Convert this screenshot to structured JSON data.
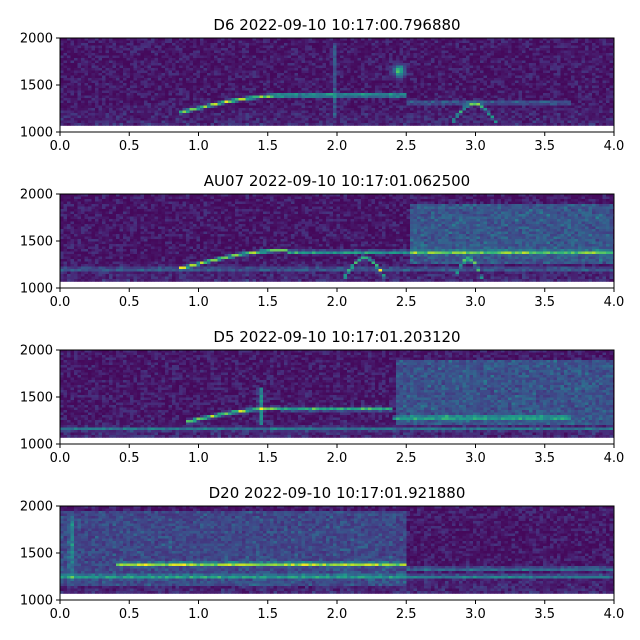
{
  "chart_data": [
    {
      "type": "heatmap",
      "title": "D6 2022-09-10 10:17:00.796880",
      "xlim": [
        0.0,
        4.0
      ],
      "ylim": [
        1000,
        2000
      ],
      "xticks": [
        "0.0",
        "0.5",
        "1.0",
        "1.5",
        "2.0",
        "2.5",
        "3.0",
        "3.5",
        "4.0"
      ],
      "yticks": [
        "1000",
        "1500",
        "2000"
      ],
      "data_ylim": [
        1090,
        2000
      ],
      "colormap": "viridis",
      "features": [
        {
          "kind": "arc",
          "t0": 0.85,
          "t1": 1.65,
          "f0": 1200,
          "f1": 1390,
          "intensity": 0.9
        },
        {
          "kind": "line",
          "t0": 1.65,
          "t1": 2.5,
          "f": 1390,
          "intensity": 0.7
        },
        {
          "kind": "line",
          "t0": 2.5,
          "t1": 3.7,
          "f": 1310,
          "intensity": 0.35
        },
        {
          "kind": "hump",
          "t0": 2.83,
          "t1": 3.15,
          "f": 1300,
          "intensity": 0.6
        },
        {
          "kind": "blob",
          "t": 2.45,
          "f": 1650,
          "intensity": 0.8
        },
        {
          "kind": "vline",
          "t": 1.98,
          "f0": 1150,
          "f1": 1950,
          "intensity": 0.25
        }
      ]
    },
    {
      "type": "heatmap",
      "title": "AU07 2022-09-10 10:17:01.062500",
      "xlim": [
        0.0,
        4.0
      ],
      "ylim": [
        1000,
        2000
      ],
      "xticks": [
        "0.0",
        "0.5",
        "1.0",
        "1.5",
        "2.0",
        "2.5",
        "3.0",
        "3.5",
        "4.0"
      ],
      "yticks": [
        "1000",
        "1500",
        "2000"
      ],
      "data_ylim": [
        1090,
        2000
      ],
      "colormap": "viridis",
      "features": [
        {
          "kind": "arc",
          "t0": 0.85,
          "t1": 1.65,
          "f0": 1200,
          "f1": 1400,
          "intensity": 0.9
        },
        {
          "kind": "line",
          "t0": 1.65,
          "t1": 4.0,
          "f": 1380,
          "intensity": 0.6
        },
        {
          "kind": "line",
          "t0": 0.0,
          "t1": 4.0,
          "f": 1200,
          "intensity": 0.3
        },
        {
          "kind": "hump",
          "t0": 2.05,
          "t1": 2.35,
          "f": 1320,
          "intensity": 0.8
        },
        {
          "kind": "hump",
          "t0": 2.85,
          "t1": 3.05,
          "f": 1310,
          "intensity": 0.6
        },
        {
          "kind": "region",
          "t0": 2.52,
          "t1": 4.0,
          "f0": 1250,
          "f1": 1900,
          "intensity": 0.3
        }
      ]
    },
    {
      "type": "heatmap",
      "title": "D5 2022-09-10 10:17:01.203120",
      "xlim": [
        0.0,
        4.0
      ],
      "ylim": [
        1000,
        2000
      ],
      "xticks": [
        "0.0",
        "0.5",
        "1.0",
        "1.5",
        "2.0",
        "2.5",
        "3.0",
        "3.5",
        "4.0"
      ],
      "yticks": [
        "1000",
        "1500",
        "2000"
      ],
      "data_ylim": [
        1090,
        2000
      ],
      "colormap": "viridis",
      "features": [
        {
          "kind": "arc",
          "t0": 0.9,
          "t1": 1.6,
          "f0": 1230,
          "f1": 1380,
          "intensity": 0.9
        },
        {
          "kind": "line",
          "t0": 1.6,
          "t1": 2.4,
          "f": 1370,
          "intensity": 0.7
        },
        {
          "kind": "line",
          "t0": 2.4,
          "t1": 3.7,
          "f": 1280,
          "intensity": 0.5
        },
        {
          "kind": "line",
          "t0": 0.0,
          "t1": 4.0,
          "f": 1160,
          "intensity": 0.35
        },
        {
          "kind": "region",
          "t0": 2.42,
          "t1": 4.0,
          "f0": 1200,
          "f1": 1900,
          "intensity": 0.28
        },
        {
          "kind": "vline",
          "t": 1.45,
          "f0": 1200,
          "f1": 1600,
          "intensity": 0.5
        }
      ]
    },
    {
      "type": "heatmap",
      "title": "D20 2022-09-10 10:17:01.921880",
      "xlim": [
        0.0,
        4.0
      ],
      "ylim": [
        1000,
        2000
      ],
      "xticks": [
        "0.0",
        "0.5",
        "1.0",
        "1.5",
        "2.0",
        "2.5",
        "3.0",
        "3.5",
        "4.0"
      ],
      "yticks": [
        "1000",
        "1500",
        "2000"
      ],
      "data_ylim": [
        1090,
        2000
      ],
      "colormap": "viridis",
      "features": [
        {
          "kind": "line",
          "t0": 0.4,
          "t1": 2.5,
          "f": 1380,
          "intensity": 0.8
        },
        {
          "kind": "line",
          "t0": 0.0,
          "t1": 4.0,
          "f": 1250,
          "intensity": 0.45
        },
        {
          "kind": "line",
          "t0": 2.5,
          "t1": 4.0,
          "f": 1330,
          "intensity": 0.4
        },
        {
          "kind": "vline",
          "t": 0.08,
          "f0": 1200,
          "f1": 1900,
          "intensity": 0.35
        },
        {
          "kind": "region",
          "t0": 0.0,
          "t1": 2.5,
          "f0": 1150,
          "f1": 1950,
          "intensity": 0.22
        }
      ]
    }
  ]
}
